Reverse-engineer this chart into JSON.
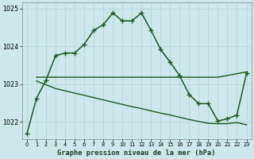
{
  "title": "Graphe pression niveau de la mer (hPa)",
  "bg_color": "#cce8ec",
  "grid_color": "#b8d8dc",
  "line_color": "#1a5c1a",
  "xlim_min": -0.5,
  "xlim_max": 23.5,
  "ylim_min": 1021.55,
  "ylim_max": 1025.15,
  "yticks": [
    1022,
    1023,
    1024,
    1025
  ],
  "xticks": [
    0,
    1,
    2,
    3,
    4,
    5,
    6,
    7,
    8,
    9,
    10,
    11,
    12,
    13,
    14,
    15,
    16,
    17,
    18,
    19,
    20,
    21,
    22,
    23
  ],
  "series1_x": [
    0,
    1,
    2,
    3,
    4,
    5,
    6,
    7,
    8,
    9,
    10,
    11,
    12,
    13,
    14,
    15,
    16,
    17,
    18,
    19,
    20,
    21,
    22,
    23
  ],
  "series1_y": [
    1021.68,
    1022.62,
    1023.1,
    1023.75,
    1023.82,
    1023.82,
    1024.05,
    1024.42,
    1024.57,
    1024.88,
    1024.67,
    1024.67,
    1024.88,
    1024.42,
    1023.92,
    1023.58,
    1023.22,
    1022.72,
    1022.48,
    1022.48,
    1022.02,
    1022.08,
    1022.18,
    1023.28
  ],
  "series2_x": [
    1,
    2,
    14,
    20,
    23
  ],
  "series2_y": [
    1023.18,
    1023.18,
    1023.18,
    1023.18,
    1023.32
  ],
  "series3_x": [
    1,
    2,
    3,
    4,
    5,
    6,
    7,
    8,
    9,
    10,
    11,
    12,
    13,
    14,
    15,
    16,
    17,
    18,
    19,
    20,
    21,
    22,
    23
  ],
  "series3_y": [
    1023.08,
    1022.98,
    1022.88,
    1022.82,
    1022.76,
    1022.7,
    1022.64,
    1022.58,
    1022.52,
    1022.46,
    1022.4,
    1022.35,
    1022.29,
    1022.23,
    1022.18,
    1022.12,
    1022.06,
    1022.01,
    1021.96,
    1021.95,
    1021.95,
    1021.98,
    1021.92
  ]
}
